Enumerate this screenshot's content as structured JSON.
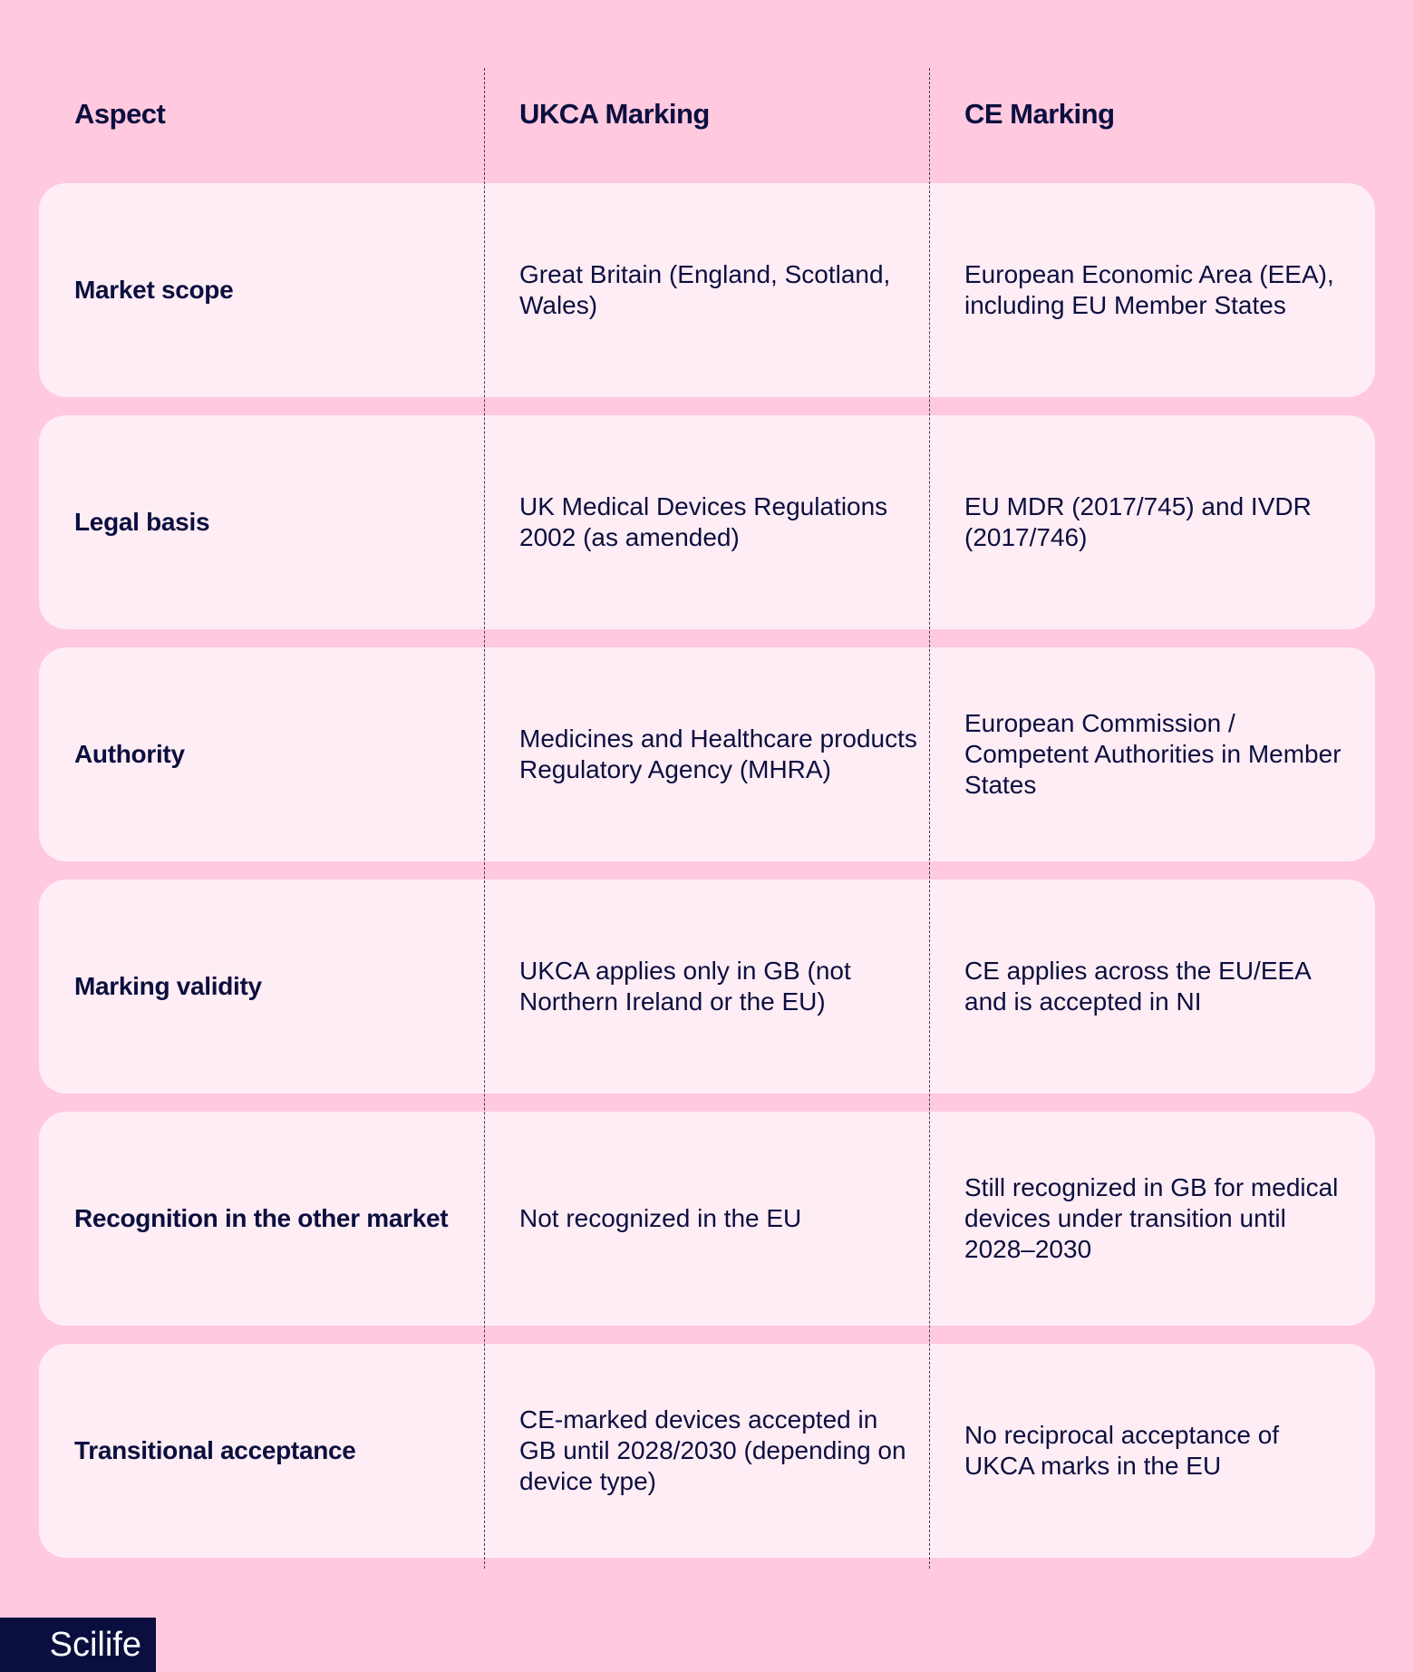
{
  "headers": [
    "Aspect",
    "UKCA Marking",
    "CE Marking"
  ],
  "rows": [
    [
      "Market scope",
      "Great Britain (England, Scotland, Wales)",
      "European Economic Area (EEA), including EU Member States"
    ],
    [
      "Legal basis",
      "UK Medical Devices Regulations 2002 (as amended)",
      "EU MDR (2017/745) and IVDR (2017/746)"
    ],
    [
      "Authority",
      "Medicines and Healthcare products Regulatory Agency (MHRA)",
      "European Commission / Competent Authorities in Member States"
    ],
    [
      "Marking validity",
      "UKCA applies only in GB (not Northern Ireland or the EU)",
      "CE applies across the EU/EEA and is accepted in NI"
    ],
    [
      "Recognition in the other market",
      "Not recognized in the EU",
      "Still recognized in GB for medical devices under transition until 2028–2030"
    ],
    [
      "Transitional acceptance",
      "CE-marked devices accepted in GB until 2028/2030 (depending on device type)",
      "No reciprocal acceptance of UKCA marks in the EU"
    ]
  ],
  "logo": "Scilife",
  "colors": {
    "background": "#ffc9df",
    "row": "#ffedf5",
    "text": "#0b0f3f",
    "logo_bg": "#0a0f3f"
  }
}
